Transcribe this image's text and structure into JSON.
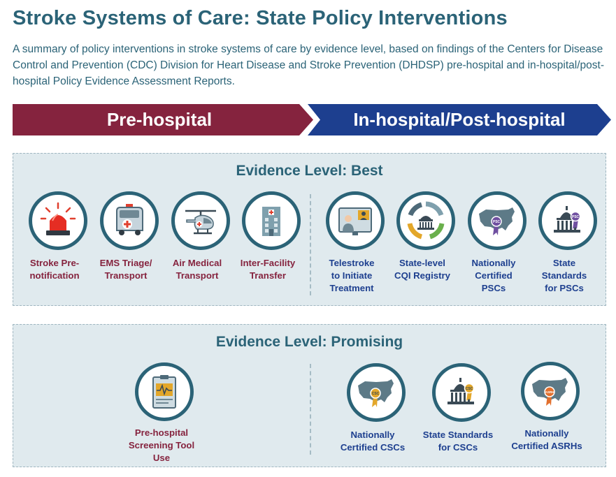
{
  "title": "Stroke Systems of Care: State Policy Interventions",
  "subtitle": "A summary of policy interventions in stroke systems of care by evidence level, based on findings of the Centers for Disease Control and Prevention (CDC) Division for Heart Disease and Stroke Prevention (DHDSP) pre-hospital and in-hospital/post-hospital Policy Evidence Assessment Reports.",
  "banners": {
    "pre_hospital": "Pre-hospital",
    "in_post_hospital": "In-hospital/Post-hospital"
  },
  "colors": {
    "pre_hospital": "#85233e",
    "in_post_hospital": "#1d3f8f",
    "teal": "#2b6377",
    "panel_bg": "#e0eaee",
    "badge_gold": "#e3a72a",
    "badge_purple": "#6f4fa0"
  },
  "best": {
    "title": "Evidence Level: Best",
    "pre_items": [
      {
        "label_lines": [
          "Stroke Pre-",
          "notification"
        ],
        "icon": "siren-icon"
      },
      {
        "label_lines": [
          "EMS Triage/",
          "Transport"
        ],
        "icon": "ambulance-icon"
      },
      {
        "label_lines": [
          "Air Medical",
          "Transport"
        ],
        "icon": "helicopter-icon"
      },
      {
        "label_lines": [
          "Inter-Facility",
          "Transfer"
        ],
        "icon": "hospital-building-icon"
      }
    ],
    "post_items": [
      {
        "label_lines": [
          "Telestroke",
          "to Initiate",
          "Treatment"
        ],
        "icon": "telemedicine-icon"
      },
      {
        "label_lines": [
          "State-level",
          "CQI Registry"
        ],
        "icon": "cycle-capitol-icon"
      },
      {
        "label_lines": [
          "Nationally",
          "Certified",
          "PSCs"
        ],
        "icon": "us-map-badge-icon",
        "badge_text": "PSC"
      },
      {
        "label_lines": [
          "State",
          "Standards",
          "for PSCs"
        ],
        "icon": "capitol-badge-icon",
        "badge_text": "PSC"
      }
    ]
  },
  "promising": {
    "title": "Evidence Level: Promising",
    "pre_items": [
      {
        "label_lines": [
          "Pre-hospital",
          "Screening Tool Use"
        ],
        "icon": "screening-clipboard-icon"
      }
    ],
    "post_items": [
      {
        "label_lines": [
          "Nationally",
          "Certified CSCs"
        ],
        "icon": "us-map-badge-icon",
        "badge_text": "CSC"
      },
      {
        "label_lines": [
          "State Standards",
          "for CSCs"
        ],
        "icon": "capitol-badge-icon",
        "badge_text": "CSC"
      },
      {
        "label_lines": [
          "Nationally",
          "Certified ASRHs"
        ],
        "icon": "us-map-badge-icon",
        "badge_text": "ASRH"
      }
    ]
  }
}
